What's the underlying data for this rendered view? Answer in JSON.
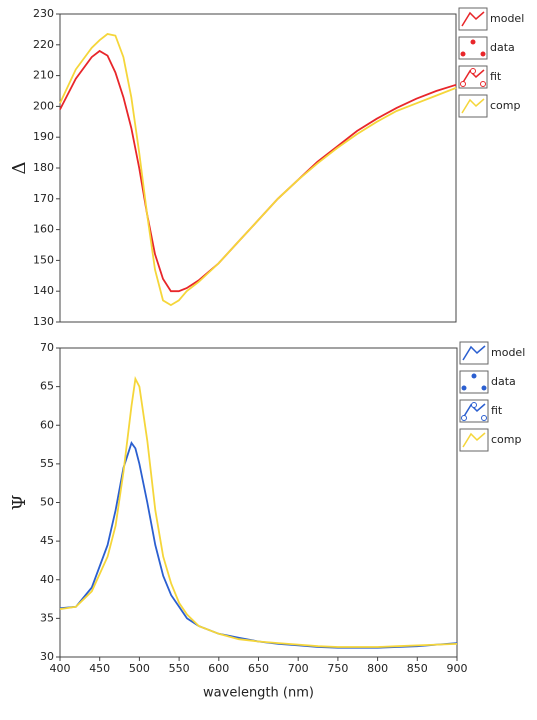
{
  "chart_data": [
    {
      "type": "line",
      "ylabel": "Δ",
      "x": [
        400,
        420,
        440,
        450,
        460,
        470,
        480,
        490,
        500,
        510,
        520,
        530,
        540,
        550,
        560,
        575,
        600,
        625,
        650,
        675,
        700,
        725,
        750,
        775,
        800,
        825,
        850,
        875,
        900
      ],
      "xlim": [
        400,
        900
      ],
      "ylim": [
        130,
        230
      ],
      "yticks": [
        130,
        140,
        150,
        160,
        170,
        180,
        190,
        200,
        210,
        220,
        230
      ],
      "series": [
        {
          "name": "model",
          "color": "#e8262a",
          "style": "line",
          "values": [
            199,
            209,
            216,
            218,
            216.5,
            211,
            203,
            193,
            180,
            165,
            152,
            144,
            140,
            140,
            141,
            143.5,
            149,
            156,
            163,
            170,
            176,
            182,
            187,
            192,
            196,
            199.5,
            202.5,
            205,
            207
          ]
        },
        {
          "name": "data",
          "color": "#e8262a",
          "style": "dots"
        },
        {
          "name": "fit",
          "color": "#e8262a",
          "style": "line-dots"
        },
        {
          "name": "comp",
          "color": "#f5d63a",
          "style": "line",
          "values": [
            201,
            212,
            219,
            221.5,
            223.5,
            223,
            216,
            203,
            185,
            165,
            147,
            137,
            135.5,
            137,
            140,
            143,
            149,
            156,
            163,
            170,
            176,
            181.5,
            186.5,
            191,
            195,
            198.5,
            201,
            203.5,
            206
          ]
        }
      ]
    },
    {
      "type": "line",
      "ylabel": "Ψ",
      "xlabel": "wavelength (nm)",
      "x": [
        400,
        420,
        440,
        460,
        470,
        480,
        490,
        495,
        500,
        510,
        520,
        530,
        540,
        550,
        560,
        575,
        600,
        625,
        650,
        675,
        700,
        725,
        750,
        775,
        800,
        825,
        850,
        875,
        900
      ],
      "xlim": [
        400,
        900
      ],
      "xticks": [
        400,
        450,
        500,
        550,
        600,
        650,
        700,
        750,
        800,
        850,
        900
      ],
      "ylim": [
        30,
        70
      ],
      "yticks": [
        30,
        35,
        40,
        45,
        50,
        55,
        60,
        65,
        70
      ],
      "series": [
        {
          "name": "model",
          "color": "#2b5fd0",
          "style": "line",
          "values": [
            36.3,
            36.5,
            39,
            44.5,
            49,
            54.5,
            57.7,
            57,
            55,
            50,
            44.5,
            40.5,
            38,
            36.5,
            35,
            34,
            33,
            32.5,
            32,
            31.7,
            31.5,
            31.3,
            31.2,
            31.2,
            31.2,
            31.3,
            31.4,
            31.6,
            31.8
          ]
        },
        {
          "name": "data",
          "color": "#2b5fd0",
          "style": "dots"
        },
        {
          "name": "fit",
          "color": "#2b5fd0",
          "style": "line-dots"
        },
        {
          "name": "comp",
          "color": "#f5d63a",
          "style": "line",
          "values": [
            36.2,
            36.5,
            38.5,
            43,
            47,
            54,
            62.5,
            66,
            65,
            58,
            49,
            43,
            39.5,
            37,
            35.5,
            34,
            33,
            32.3,
            32,
            31.8,
            31.6,
            31.4,
            31.3,
            31.3,
            31.3,
            31.4,
            31.5,
            31.6,
            31.7
          ]
        }
      ]
    }
  ]
}
